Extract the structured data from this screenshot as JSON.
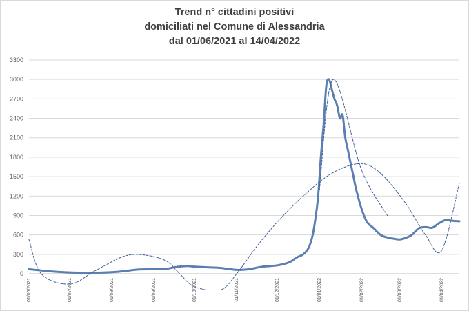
{
  "chart_data": {
    "type": "line",
    "title": [
      "Trend n° cittadini positivi",
      "domiciliati nel Comune di Alessandria",
      "dal 01/06/2021 al 14/04/2022"
    ],
    "xlabel": "",
    "ylabel": "",
    "ylim": [
      0,
      3300
    ],
    "yticks": [
      "3300",
      "3000",
      "2700",
      "2400",
      "2100",
      "1800",
      "1500",
      "1200",
      "900",
      "600",
      "300",
      "0"
    ],
    "xticks": [
      "01/06/2021",
      "01/07/2021",
      "01/08/2021",
      "01/09/2021",
      "01/10/2021",
      "01/11/2021",
      "01/12/2021",
      "01/01/2022",
      "01/02/2022",
      "01/03/2022",
      "01/04/2022"
    ],
    "grid": true,
    "colors": {
      "series": "#5b7fb0",
      "trend": "#3c5d99",
      "grid": "#d9d9d9"
    },
    "series": [
      {
        "style": "solid",
        "x": [
          "2021-06-01",
          "2021-06-08",
          "2021-06-15",
          "2021-06-22",
          "2021-07-01",
          "2021-07-10",
          "2021-07-20",
          "2021-08-01",
          "2021-08-10",
          "2021-08-20",
          "2021-09-01",
          "2021-09-10",
          "2021-09-16",
          "2021-09-25",
          "2021-10-01",
          "2021-10-10",
          "2021-10-20",
          "2021-11-01",
          "2021-11-10",
          "2021-11-20",
          "2021-12-01",
          "2021-12-10",
          "2021-12-15",
          "2021-12-20",
          "2021-12-24",
          "2021-12-27",
          "2021-12-29",
          "2021-12-31",
          "2022-01-02",
          "2022-01-04",
          "2022-01-06",
          "2022-01-08",
          "2022-01-10",
          "2022-01-12",
          "2022-01-14",
          "2022-01-16",
          "2022-01-18",
          "2022-01-20",
          "2022-01-22",
          "2022-01-24",
          "2022-01-26",
          "2022-01-28",
          "2022-02-01",
          "2022-02-05",
          "2022-02-10",
          "2022-02-15",
          "2022-02-20",
          "2022-02-25",
          "2022-03-01",
          "2022-03-05",
          "2022-03-10",
          "2022-03-15",
          "2022-03-20",
          "2022-03-25",
          "2022-03-30",
          "2022-04-04",
          "2022-04-08",
          "2022-04-14"
        ],
        "values": [
          70,
          55,
          40,
          30,
          20,
          15,
          15,
          25,
          40,
          65,
          70,
          75,
          100,
          120,
          110,
          100,
          90,
          60,
          70,
          110,
          130,
          180,
          250,
          300,
          400,
          600,
          850,
          1200,
          1800,
          2300,
          2900,
          3000,
          2850,
          2700,
          2600,
          2400,
          2450,
          2100,
          1900,
          1700,
          1500,
          1300,
          1000,
          800,
          700,
          600,
          560,
          540,
          530,
          550,
          600,
          700,
          720,
          710,
          780,
          830,
          820,
          810
        ]
      },
      {
        "style": "dashed",
        "x": [
          "2021-06-01",
          "2021-06-10",
          "2021-07-01",
          "2021-07-20",
          "2021-08-10",
          "2021-08-25",
          "2021-09-10",
          "2021-09-20",
          "2021-10-01",
          "2021-10-20",
          "2021-11-01",
          "2021-11-15",
          "2021-12-01",
          "2021-12-20",
          "2022-01-10",
          "2022-01-31",
          "2022-02-15",
          "2022-03-05",
          "2022-03-20",
          "2022-04-01",
          "2022-04-14"
        ],
        "values": [
          530,
          0,
          -160,
          50,
          270,
          290,
          200,
          0,
          -200,
          -250,
          0,
          400,
          800,
          1200,
          1550,
          1700,
          1550,
          1100,
          600,
          360,
          1400
        ]
      },
      {
        "style": "dashed",
        "x": [
          "2022-01-01",
          "2022-01-11",
          "2022-02-01",
          "2022-02-20"
        ],
        "values": [
          1300,
          3000,
          1600,
          900
        ]
      }
    ]
  }
}
